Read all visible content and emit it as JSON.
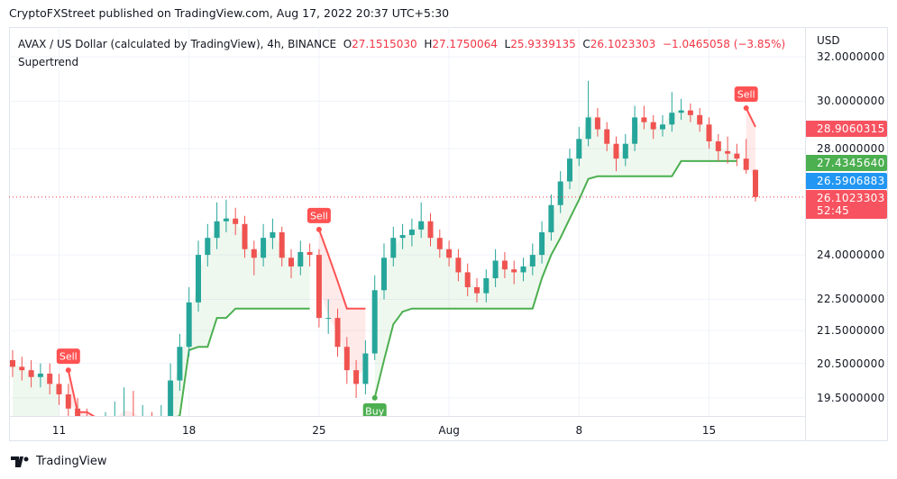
{
  "header": {
    "published": "CryptoFXStreet published on TradingView.com, Aug 17, 2022 20:37 UTC+5:30"
  },
  "legend": {
    "symbol": "AVAX / US Dollar (calculated by TradingView), 4h, BINANCE",
    "o_label": "O",
    "o": "27.1515030",
    "h_label": "H",
    "h": "27.1750064",
    "l_label": "L",
    "l": "25.9339135",
    "c_label": "C",
    "c": "26.1023303",
    "change": "−1.0465058 (−3.85%)",
    "indicator": "Supertrend"
  },
  "price_axis": {
    "currency": "USD",
    "ticks": [
      "32.0000000",
      "30.0000000",
      "28.0000000",
      "24.0000000",
      "22.5000000",
      "21.5000000",
      "20.5000000",
      "19.5000000"
    ],
    "tick_values": [
      32,
      30,
      28,
      24,
      22.5,
      21.5,
      20.5,
      19.5
    ],
    "scale": "log"
  },
  "badges": [
    {
      "value": "28.9060315",
      "color": "#f7525f"
    },
    {
      "value": "27.4345640",
      "color": "#4caf50"
    },
    {
      "value": "26.5906883",
      "color": "#2196f3"
    },
    {
      "value": "26.1023303",
      "color": "#f7525f",
      "countdown": "52:45"
    }
  ],
  "time_axis": {
    "ticks": [
      "11",
      "18",
      "25",
      "Aug",
      "8",
      "15"
    ]
  },
  "colors": {
    "up": "#26a69a",
    "down": "#ef5350",
    "st_up": "#4caf50",
    "st_down": "#ff5252"
  },
  "chart_data": {
    "type": "candlestick",
    "candles": [
      [
        20.6,
        20.9,
        20.1,
        20.4
      ],
      [
        20.4,
        20.7,
        20.0,
        20.3
      ],
      [
        20.3,
        20.6,
        19.8,
        20.1
      ],
      [
        20.1,
        20.5,
        19.8,
        20.2
      ],
      [
        20.2,
        20.5,
        19.6,
        19.9
      ],
      [
        19.9,
        20.2,
        19.3,
        19.6
      ],
      [
        19.6,
        19.9,
        18.9,
        19.2
      ],
      [
        19.2,
        19.5,
        18.6,
        18.9
      ],
      [
        18.9,
        19.2,
        18.3,
        18.6
      ],
      [
        18.6,
        18.9,
        18.2,
        18.5
      ],
      [
        18.5,
        19.1,
        18.3,
        18.7
      ],
      [
        18.7,
        19.4,
        18.4,
        18.7
      ],
      [
        18.7,
        19.8,
        18.5,
        18.8
      ],
      [
        18.8,
        19.7,
        18.5,
        18.7
      ],
      [
        18.7,
        19.3,
        18.5,
        18.8
      ],
      [
        18.8,
        19.1,
        18.3,
        18.6
      ],
      [
        18.6,
        19.3,
        18.3,
        18.9
      ],
      [
        18.9,
        20.5,
        18.7,
        20.0
      ],
      [
        20.0,
        21.4,
        19.7,
        21.0
      ],
      [
        21.0,
        22.9,
        20.7,
        22.4
      ],
      [
        22.4,
        24.5,
        22.1,
        24.0
      ],
      [
        24.0,
        25.1,
        23.6,
        24.6
      ],
      [
        24.6,
        25.9,
        24.2,
        25.2
      ],
      [
        25.2,
        26.0,
        24.8,
        25.3
      ],
      [
        25.3,
        25.7,
        24.7,
        25.1
      ],
      [
        25.1,
        25.4,
        23.9,
        24.2
      ],
      [
        24.2,
        24.5,
        23.3,
        23.9
      ],
      [
        23.9,
        25.1,
        23.6,
        24.6
      ],
      [
        24.6,
        25.3,
        24.2,
        24.8
      ],
      [
        24.8,
        25.0,
        23.6,
        23.9
      ],
      [
        23.9,
        24.2,
        23.2,
        23.6
      ],
      [
        23.6,
        24.5,
        23.3,
        24.1
      ],
      [
        24.1,
        24.4,
        23.6,
        24.0
      ],
      [
        24.0,
        24.2,
        21.6,
        21.9
      ],
      [
        21.9,
        22.5,
        21.4,
        21.9
      ],
      [
        21.9,
        22.2,
        20.7,
        21.0
      ],
      [
        21.0,
        21.3,
        19.9,
        20.3
      ],
      [
        20.3,
        20.6,
        19.5,
        19.9
      ],
      [
        19.9,
        21.2,
        19.6,
        20.8
      ],
      [
        20.8,
        23.3,
        20.6,
        22.8
      ],
      [
        22.8,
        24.4,
        22.5,
        23.9
      ],
      [
        23.9,
        25.0,
        23.6,
        24.6
      ],
      [
        24.6,
        25.1,
        24.2,
        24.7
      ],
      [
        24.7,
        25.3,
        24.3,
        24.9
      ],
      [
        24.9,
        25.9,
        24.6,
        25.2
      ],
      [
        25.2,
        25.5,
        24.3,
        24.6
      ],
      [
        24.6,
        24.9,
        23.9,
        24.2
      ],
      [
        24.2,
        24.5,
        23.6,
        23.9
      ],
      [
        23.9,
        24.2,
        23.1,
        23.4
      ],
      [
        23.4,
        23.7,
        22.6,
        22.9
      ],
      [
        22.9,
        23.2,
        22.4,
        22.7
      ],
      [
        22.7,
        23.5,
        22.4,
        23.2
      ],
      [
        23.2,
        24.2,
        22.9,
        23.8
      ],
      [
        23.8,
        24.1,
        23.2,
        23.5
      ],
      [
        23.5,
        23.8,
        23.0,
        23.4
      ],
      [
        23.4,
        23.9,
        23.1,
        23.6
      ],
      [
        23.6,
        24.4,
        23.3,
        24.0
      ],
      [
        24.0,
        25.2,
        23.7,
        24.8
      ],
      [
        24.8,
        26.2,
        24.5,
        25.8
      ],
      [
        25.8,
        27.1,
        25.5,
        26.7
      ],
      [
        26.7,
        28.0,
        26.4,
        27.6
      ],
      [
        27.6,
        28.9,
        27.3,
        28.4
      ],
      [
        28.4,
        30.9,
        28.1,
        29.3
      ],
      [
        29.3,
        29.7,
        28.5,
        28.8
      ],
      [
        28.8,
        29.1,
        27.9,
        28.2
      ],
      [
        28.2,
        28.5,
        27.1,
        27.6
      ],
      [
        27.6,
        28.6,
        27.3,
        28.2
      ],
      [
        28.2,
        29.8,
        27.9,
        29.3
      ],
      [
        29.3,
        29.8,
        28.8,
        29.1
      ],
      [
        29.1,
        29.4,
        28.4,
        28.8
      ],
      [
        28.8,
        29.4,
        28.5,
        29.0
      ],
      [
        29.0,
        30.4,
        28.7,
        29.5
      ],
      [
        29.5,
        30.1,
        29.2,
        29.6
      ],
      [
        29.6,
        29.9,
        29.1,
        29.4
      ],
      [
        29.4,
        29.7,
        28.7,
        29.0
      ],
      [
        29.0,
        29.3,
        28.0,
        28.3
      ],
      [
        28.3,
        28.6,
        27.5,
        27.9
      ],
      [
        27.9,
        28.5,
        27.4,
        27.8
      ],
      [
        27.8,
        28.2,
        27.3,
        27.6
      ],
      [
        27.6,
        28.4,
        27.0,
        27.15
      ],
      [
        27.151503,
        27.1750064,
        25.9339135,
        26.1023303
      ]
    ],
    "supertrend_up": [
      18.5,
      18.5,
      18.5,
      18.5,
      18.5,
      18.5,
      null,
      null,
      null,
      null,
      null,
      null,
      null,
      null,
      null,
      null,
      null,
      18.9,
      19.0,
      20.9,
      21.0,
      21.0,
      21.9,
      21.9,
      22.2,
      22.2,
      22.2,
      22.2,
      22.2,
      22.2,
      22.2,
      22.2,
      22.2,
      null,
      null,
      null,
      null,
      null,
      null,
      19.5,
      20.6,
      21.7,
      22.1,
      22.2,
      22.2,
      22.2,
      22.2,
      22.2,
      22.2,
      22.2,
      22.2,
      22.2,
      22.2,
      22.2,
      22.2,
      22.2,
      22.2,
      23.2,
      24.0,
      24.6,
      25.3,
      26.0,
      26.8,
      26.9,
      26.9,
      26.9,
      26.9,
      26.9,
      26.9,
      26.9,
      26.9,
      26.9,
      27.5,
      27.5,
      27.5,
      27.5,
      27.5,
      27.5,
      27.5,
      null,
      null
    ],
    "supertrend_down": [
      null,
      null,
      null,
      null,
      null,
      null,
      20.3,
      19.1,
      19.1,
      18.95,
      18.95,
      18.95,
      18.95,
      18.95,
      18.95,
      18.95,
      18.95,
      null,
      null,
      null,
      null,
      null,
      null,
      null,
      null,
      null,
      null,
      null,
      null,
      null,
      null,
      null,
      null,
      24.9,
      24.0,
      23.1,
      22.2,
      22.2,
      22.2,
      null,
      null,
      null,
      null,
      null,
      null,
      null,
      null,
      null,
      null,
      null,
      null,
      null,
      null,
      null,
      null,
      null,
      null,
      null,
      null,
      null,
      null,
      null,
      null,
      null,
      null,
      null,
      null,
      null,
      null,
      null,
      null,
      null,
      null,
      null,
      null,
      null,
      null,
      null,
      null,
      29.7,
      28.9
    ],
    "signals": [
      {
        "index": 6,
        "label": "Sell"
      },
      {
        "index": 33,
        "label": "Sell"
      },
      {
        "index": 39,
        "label": "Buy"
      },
      {
        "index": 79,
        "label": "Sell"
      }
    ],
    "last_price": 26.1023303
  },
  "footer": {
    "brand": "TradingView"
  }
}
